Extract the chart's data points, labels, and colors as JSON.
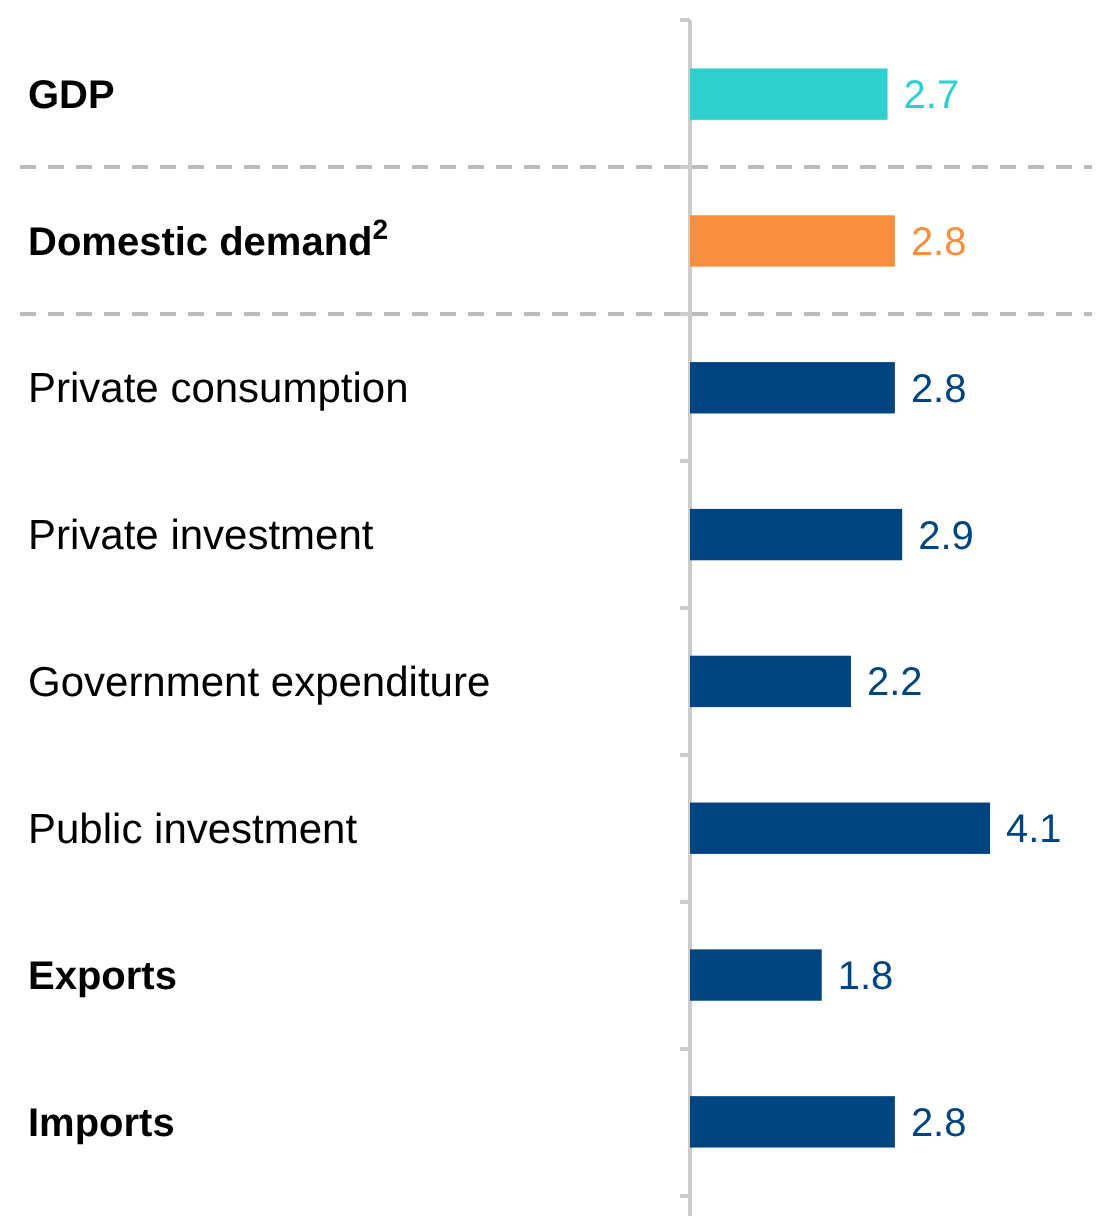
{
  "chart_data": {
    "type": "bar",
    "orientation": "horizontal",
    "categories": [
      "GDP",
      "Domestic demand$^{2}$",
      "Private consumption",
      "Private investment",
      "Government expenditure",
      "Public investment",
      "Exports",
      "Imports"
    ],
    "values": [
      2.7,
      2.8,
      2.8,
      2.9,
      2.2,
      4.1,
      1.8,
      2.8
    ],
    "colors": [
      "#2ecfcf",
      "#f98e3c",
      "#004481",
      "#004481",
      "#004481",
      "#004481",
      "#004481",
      "#004481"
    ],
    "data_labels": true
  }
}
